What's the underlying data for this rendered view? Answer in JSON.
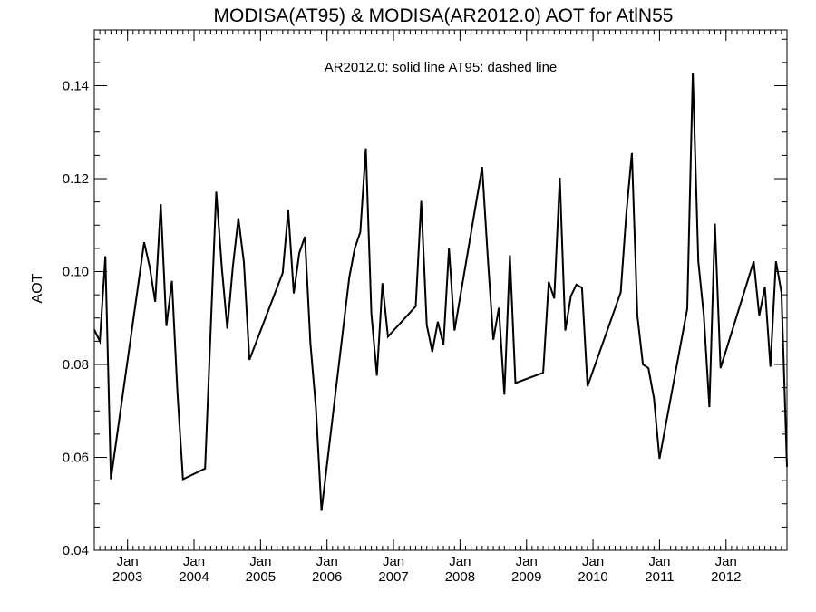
{
  "chart_data": {
    "type": "line",
    "title": "MODISA(AT95) & MODISA(AR2012.0)  AOT for AtlN55",
    "annotation": "AR2012.0: solid line   AT95: dashed line",
    "ylabel": "AOT",
    "xlabel": "",
    "xlim": [
      "2002-07-01",
      "2012-12-01"
    ],
    "ylim": [
      0.04,
      0.152
    ],
    "y_ticks": [
      {
        "value": 0.04,
        "label": "0.04"
      },
      {
        "value": 0.06,
        "label": "0.06"
      },
      {
        "value": 0.08,
        "label": "0.08"
      },
      {
        "value": 0.1,
        "label": "0.10"
      },
      {
        "value": 0.12,
        "label": "0.12"
      },
      {
        "value": 0.14,
        "label": "0.14"
      }
    ],
    "y_minor_step": 0.005,
    "x_ticks": [
      {
        "date": "2003-01-01",
        "label": "Jan",
        "year": "2003"
      },
      {
        "date": "2004-01-01",
        "label": "Jan",
        "year": "2004"
      },
      {
        "date": "2005-01-01",
        "label": "Jan",
        "year": "2005"
      },
      {
        "date": "2006-01-01",
        "label": "Jan",
        "year": "2006"
      },
      {
        "date": "2007-01-01",
        "label": "Jan",
        "year": "2007"
      },
      {
        "date": "2008-01-01",
        "label": "Jan",
        "year": "2008"
      },
      {
        "date": "2009-01-01",
        "label": "Jan",
        "year": "2009"
      },
      {
        "date": "2010-01-01",
        "label": "Jan",
        "year": "2010"
      },
      {
        "date": "2011-01-01",
        "label": "Jan",
        "year": "2011"
      },
      {
        "date": "2012-01-01",
        "label": "Jan",
        "year": "2012"
      }
    ],
    "x_minor": "monthly",
    "grid": false,
    "legend": "none",
    "series": [
      {
        "style": "solid",
        "color": "#000000",
        "points": [
          [
            "2002-07-01",
            0.0875
          ],
          [
            "2002-08-01",
            0.085
          ],
          [
            "2002-09-01",
            0.1033
          ],
          [
            "2002-10-01",
            0.0553
          ],
          [
            "2003-04-01",
            0.1063
          ],
          [
            "2003-05-01",
            0.101
          ],
          [
            "2003-06-01",
            0.0935
          ],
          [
            "2003-07-01",
            0.1145
          ],
          [
            "2003-08-01",
            0.0883
          ],
          [
            "2003-09-01",
            0.098
          ],
          [
            "2003-10-01",
            0.074
          ],
          [
            "2003-11-01",
            0.0553
          ],
          [
            "2004-03-01",
            0.0576
          ],
          [
            "2004-05-01",
            0.1172
          ],
          [
            "2004-06-01",
            0.101
          ],
          [
            "2004-07-01",
            0.0877
          ],
          [
            "2004-08-01",
            0.101
          ],
          [
            "2004-09-01",
            0.1115
          ],
          [
            "2004-10-01",
            0.102
          ],
          [
            "2004-11-01",
            0.081
          ],
          [
            "2005-05-01",
            0.0997
          ],
          [
            "2005-06-01",
            0.1132
          ],
          [
            "2005-07-01",
            0.0953
          ],
          [
            "2005-08-01",
            0.104
          ],
          [
            "2005-09-01",
            0.1075
          ],
          [
            "2005-10-01",
            0.0845
          ],
          [
            "2005-11-01",
            0.0705
          ],
          [
            "2005-12-01",
            0.0485
          ],
          [
            "2006-05-01",
            0.0987
          ],
          [
            "2006-06-01",
            0.105
          ],
          [
            "2006-07-01",
            0.1085
          ],
          [
            "2006-08-01",
            0.1265
          ],
          [
            "2006-09-01",
            0.091
          ],
          [
            "2006-10-01",
            0.0776
          ],
          [
            "2006-11-01",
            0.0975
          ],
          [
            "2006-12-01",
            0.086
          ],
          [
            "2007-05-01",
            0.0925
          ],
          [
            "2007-06-01",
            0.1152
          ],
          [
            "2007-07-01",
            0.0885
          ],
          [
            "2007-08-01",
            0.0827
          ],
          [
            "2007-09-01",
            0.0892
          ],
          [
            "2007-10-01",
            0.0842
          ],
          [
            "2007-11-01",
            0.105
          ],
          [
            "2007-12-01",
            0.0873
          ],
          [
            "2008-05-01",
            0.1225
          ],
          [
            "2008-06-01",
            0.103
          ],
          [
            "2008-07-01",
            0.0853
          ],
          [
            "2008-08-01",
            0.0922
          ],
          [
            "2008-09-01",
            0.0735
          ],
          [
            "2008-10-01",
            0.1035
          ],
          [
            "2008-11-01",
            0.076
          ],
          [
            "2009-04-01",
            0.0782
          ],
          [
            "2009-05-01",
            0.0978
          ],
          [
            "2009-06-01",
            0.0942
          ],
          [
            "2009-07-01",
            0.1202
          ],
          [
            "2009-08-01",
            0.0873
          ],
          [
            "2009-09-01",
            0.0947
          ],
          [
            "2009-10-01",
            0.0972
          ],
          [
            "2009-11-01",
            0.0965
          ],
          [
            "2009-12-01",
            0.0753
          ],
          [
            "2010-06-01",
            0.0955
          ],
          [
            "2010-07-01",
            0.1125
          ],
          [
            "2010-08-01",
            0.1255
          ],
          [
            "2010-09-01",
            0.0905
          ],
          [
            "2010-10-01",
            0.08
          ],
          [
            "2010-11-01",
            0.0792
          ],
          [
            "2010-12-01",
            0.0727
          ],
          [
            "2011-01-01",
            0.0597
          ],
          [
            "2011-06-01",
            0.092
          ],
          [
            "2011-07-01",
            0.1428
          ],
          [
            "2011-08-01",
            0.1022
          ],
          [
            "2011-09-01",
            0.0905
          ],
          [
            "2011-10-01",
            0.0708
          ],
          [
            "2011-11-01",
            0.1103
          ],
          [
            "2011-12-01",
            0.0792
          ],
          [
            "2012-06-01",
            0.1022
          ],
          [
            "2012-07-01",
            0.0905
          ],
          [
            "2012-08-01",
            0.0967
          ],
          [
            "2012-09-01",
            0.0795
          ],
          [
            "2012-10-01",
            0.1022
          ],
          [
            "2012-11-01",
            0.0955
          ],
          [
            "2012-12-01",
            0.058
          ]
        ]
      }
    ]
  }
}
